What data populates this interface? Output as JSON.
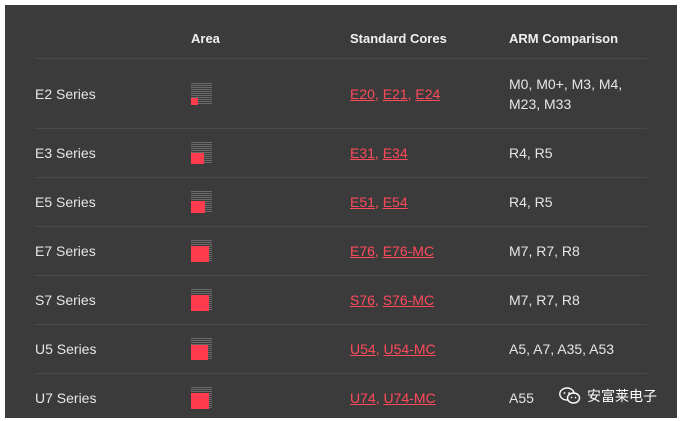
{
  "header": {
    "series": "",
    "area": "Area",
    "cores": "Standard Cores",
    "arm": "ARM Comparison"
  },
  "rows": [
    {
      "series": "E2 Series",
      "area_level": 0.2,
      "cores": [
        "E20",
        "E21",
        "E24"
      ],
      "arm": "M0, M0+, M3, M4, M23, M33"
    },
    {
      "series": "E3 Series",
      "area_level": 0.5,
      "cores": [
        "E31 ",
        "E34"
      ],
      "arm": "R4, R5"
    },
    {
      "series": "E5 Series",
      "area_level": 0.6,
      "cores": [
        "E51 ",
        "E54"
      ],
      "arm": "R4, R5"
    },
    {
      "series": "E7 Series",
      "area_level": 0.85,
      "cores": [
        "E76",
        "E76-MC"
      ],
      "arm": "M7, R7, R8"
    },
    {
      "series": "S7 Series",
      "area_level": 0.85,
      "cores": [
        "S76",
        "S76-MC"
      ],
      "arm": "M7, R7, R8"
    },
    {
      "series": "U5 Series",
      "area_level": 0.75,
      "cores": [
        "U54",
        "U54-MC"
      ],
      "arm": "A5, A7, A35, A53"
    },
    {
      "series": "U7 Series",
      "area_level": 0.85,
      "cores": [
        "U74",
        "U74-MC"
      ],
      "arm": "A55"
    }
  ],
  "watermark": {
    "text": "安富莱电子",
    "icon": "wechat-icon"
  },
  "colors": {
    "background": "#3b3b3b",
    "accent": "#ff3b4e",
    "link": "#ff4a5a",
    "text": "#e6e6e6"
  }
}
